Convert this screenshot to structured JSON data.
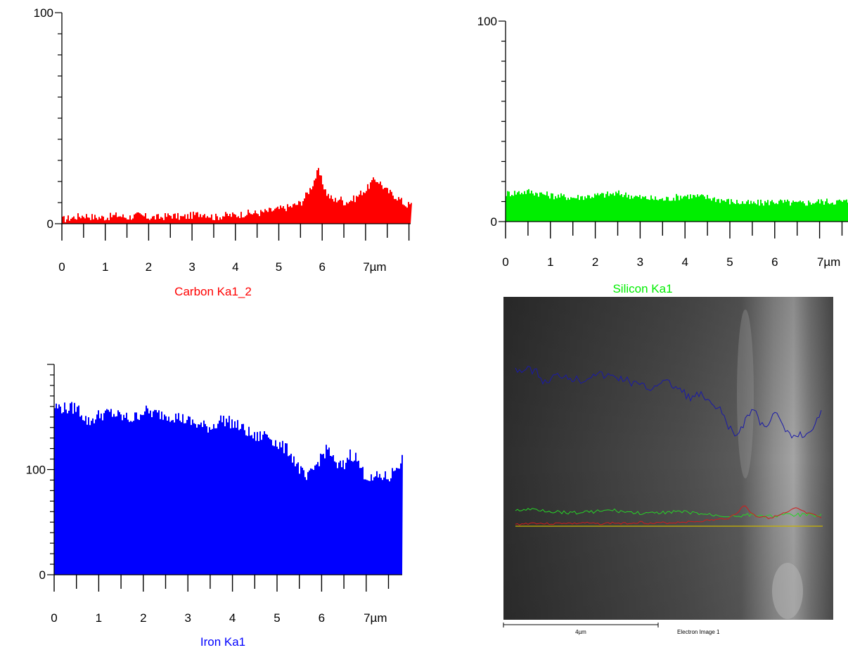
{
  "chart_data": [
    {
      "type": "area",
      "title": "Carbon Ka1_2",
      "color": "#ff0000",
      "x_unit": "µm",
      "x_ticks": [
        "0",
        "1",
        "2",
        "3",
        "4",
        "5",
        "6",
        "7µm"
      ],
      "y_ticks": [
        "0",
        "100"
      ],
      "xlim": [
        0,
        7.9
      ],
      "ylim": [
        0,
        100
      ],
      "x": [
        0,
        0.25,
        0.5,
        0.75,
        1,
        1.25,
        1.5,
        1.75,
        2,
        2.25,
        2.5,
        2.75,
        3,
        3.25,
        3.5,
        3.75,
        4,
        4.25,
        4.5,
        4.75,
        5,
        5.25,
        5.5,
        5.6,
        5.75,
        5.85,
        5.9,
        6.0,
        6.1,
        6.25,
        6.4,
        6.5,
        6.75,
        6.9,
        7.0,
        7.1,
        7.2,
        7.3,
        7.45,
        7.6,
        7.75,
        7.9
      ],
      "y": [
        2,
        3,
        4,
        3,
        3,
        4,
        3,
        4,
        3,
        3,
        4,
        3,
        4,
        5,
        3,
        4,
        4,
        5,
        5,
        6,
        7,
        8,
        10,
        13,
        18,
        23,
        25,
        19,
        14,
        11,
        12,
        10,
        12,
        15,
        16,
        19,
        21,
        20,
        16,
        14,
        12,
        9
      ]
    },
    {
      "type": "area",
      "title": "Silicon Ka1",
      "color": "#00ee00",
      "x_unit": "µm",
      "x_ticks": [
        "0",
        "1",
        "2",
        "3",
        "4",
        "5",
        "6",
        "7µm"
      ],
      "y_ticks": [
        "0",
        "100"
      ],
      "xlim": [
        0,
        7.9
      ],
      "ylim": [
        0,
        100
      ],
      "x": [
        0,
        0.5,
        1,
        1.5,
        2,
        2.5,
        3,
        3.5,
        4,
        4.5,
        5,
        5.5,
        6,
        6.5,
        7,
        7.5,
        7.9
      ],
      "y": [
        14,
        15,
        13,
        12,
        13,
        14,
        12,
        11,
        13,
        12,
        10,
        9,
        10,
        9,
        10,
        10,
        10
      ]
    },
    {
      "type": "area",
      "title": "Iron Ka1",
      "color": "#0000ff",
      "x_unit": "µm",
      "x_ticks": [
        "0",
        "1",
        "2",
        "3",
        "4",
        "5",
        "6",
        "7µm"
      ],
      "y_ticks": [
        "0",
        "100"
      ],
      "xlim": [
        0,
        7.9
      ],
      "ylim": [
        0,
        200
      ],
      "x": [
        0,
        0.25,
        0.5,
        0.75,
        1,
        1.25,
        1.5,
        1.75,
        2,
        2.25,
        2.5,
        2.75,
        3,
        3.25,
        3.5,
        3.75,
        4,
        4.25,
        4.5,
        4.75,
        5,
        5.25,
        5.5,
        5.65,
        5.8,
        6.0,
        6.15,
        6.3,
        6.5,
        6.6,
        6.75,
        6.9,
        7.1,
        7.3,
        7.5,
        7.65,
        7.8,
        7.9
      ],
      "y": [
        160,
        158,
        159,
        145,
        152,
        154,
        150,
        148,
        156,
        153,
        152,
        150,
        146,
        142,
        140,
        148,
        144,
        138,
        130,
        134,
        124,
        118,
        100,
        90,
        100,
        114,
        120,
        103,
        104,
        115,
        112,
        98,
        90,
        94,
        92,
        102,
        110,
        116
      ]
    }
  ],
  "electron_image": {
    "caption": "Electron Image 1",
    "scale_label": "4µm",
    "colors": {
      "background_dark": "#3a3a3a",
      "background_mid": "#6a6a6a",
      "iron": "#1a1aa8",
      "carbon": "#d21c1c",
      "silicon": "#27d427",
      "baseline": "#c9b400"
    }
  }
}
